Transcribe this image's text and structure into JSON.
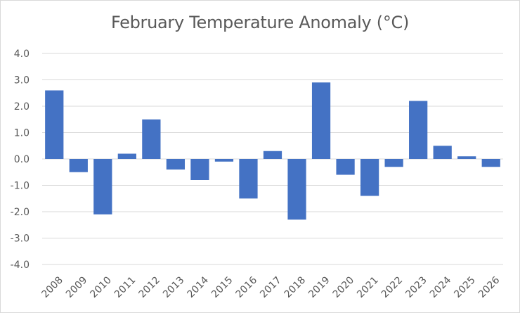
{
  "chart_data": {
    "type": "bar",
    "title": "February Temperature Anomaly (°C)",
    "xlabel": "",
    "ylabel": "",
    "categories": [
      "2008",
      "2009",
      "2010",
      "2011",
      "2012",
      "2013",
      "2014",
      "2015",
      "2016",
      "2017",
      "2018",
      "2019",
      "2020",
      "2021",
      "2022",
      "2023",
      "2024",
      "2025",
      "2026"
    ],
    "values": [
      2.6,
      -0.5,
      -2.1,
      0.2,
      1.5,
      -0.4,
      -0.8,
      -0.1,
      -1.5,
      0.3,
      -2.3,
      2.9,
      -0.6,
      -1.4,
      -0.3,
      2.2,
      0.5,
      0.1,
      -0.3
    ],
    "ylim": [
      -4.0,
      4.0
    ],
    "yticks": [
      "4.0",
      "3.0",
      "2.0",
      "1.0",
      "0.0",
      "-1.0",
      "-2.0",
      "-3.0",
      "-4.0"
    ],
    "ytick_values": [
      4,
      3,
      2,
      1,
      0,
      -1,
      -2,
      -3,
      -4
    ],
    "grid": true,
    "legend": "none",
    "bar_color": "#4472c4",
    "grid_color": "#d9d9d9"
  }
}
